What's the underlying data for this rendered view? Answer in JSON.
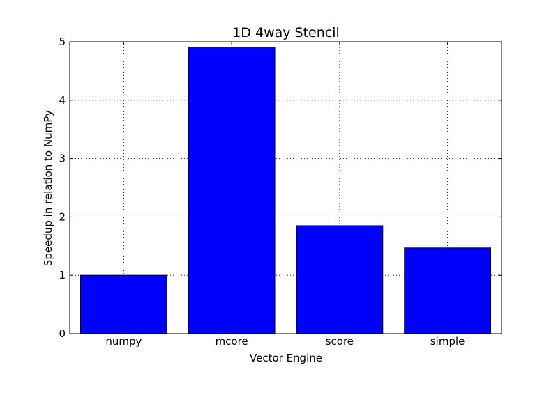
{
  "chart_data": {
    "type": "bar",
    "title": "1D 4way Stencil",
    "xlabel": "Vector Engine",
    "ylabel": "Speedup in relation to NumPy",
    "categories": [
      "numpy",
      "mcore",
      "score",
      "simple"
    ],
    "values": [
      1.0,
      4.91,
      1.85,
      1.47
    ],
    "ylim": [
      0,
      5
    ],
    "yticks": [
      "0",
      "1",
      "2",
      "3",
      "4",
      "5"
    ],
    "grid": true,
    "bar_color": "#0000ff"
  }
}
